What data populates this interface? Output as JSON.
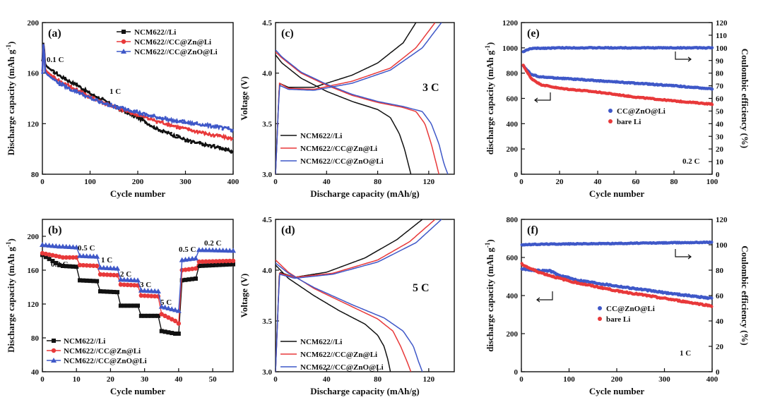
{
  "colors": {
    "black": "#111111",
    "red": "#e8393a",
    "blue": "#3f58c8"
  },
  "chart_data": [
    {
      "id": "a",
      "type": "line",
      "panel_label": "(a)",
      "xlabel": "Cycle number",
      "ylabel": "Discharge capacity (mAh g-1)",
      "xlim": [
        0,
        400
      ],
      "ylim": [
        80,
        200
      ],
      "xticks": [
        0,
        100,
        200,
        300,
        400
      ],
      "yticks": [
        80,
        120,
        160,
        200
      ],
      "annotations": [
        "0.1 C",
        "1 C"
      ],
      "series": [
        {
          "name": "NCM622//Li",
          "color": "black",
          "marker": "square",
          "x": [
            0,
            2,
            4,
            6,
            10,
            20,
            40,
            60,
            80,
            100,
            130,
            160,
            200,
            240,
            280,
            320,
            360,
            400
          ],
          "y": [
            170,
            184,
            178,
            167,
            165,
            162,
            157,
            153,
            149,
            144,
            138,
            132,
            125,
            116,
            110,
            105,
            102,
            98
          ]
        },
        {
          "name": "NCM622//CC@Zn@Li",
          "color": "red",
          "marker": "circle",
          "x": [
            0,
            2,
            4,
            6,
            10,
            20,
            40,
            60,
            80,
            100,
            130,
            160,
            200,
            240,
            280,
            320,
            360,
            400
          ],
          "y": [
            162,
            183,
            176,
            163,
            161,
            158,
            153,
            149,
            145,
            141,
            136,
            132,
            127,
            122,
            118,
            114,
            111,
            108
          ]
        },
        {
          "name": "NCM622//CC@ZnO@Li",
          "color": "blue",
          "marker": "triangle",
          "x": [
            0,
            2,
            4,
            6,
            10,
            20,
            40,
            60,
            80,
            100,
            130,
            160,
            200,
            240,
            280,
            320,
            360,
            400
          ],
          "y": [
            160,
            183,
            175,
            161,
            159,
            156,
            151,
            147,
            144,
            140,
            136,
            133,
            129,
            125,
            122,
            120,
            118,
            115
          ]
        }
      ]
    },
    {
      "id": "b",
      "type": "line",
      "panel_label": "(b)",
      "xlabel": "Cycle number",
      "ylabel": "Discharge capacity (mAh g-1)",
      "xlim": [
        0,
        56
      ],
      "ylim": [
        40,
        220
      ],
      "xticks": [
        0,
        10,
        20,
        30,
        40,
        50
      ],
      "yticks": [
        40,
        80,
        120,
        160,
        200
      ],
      "annotations": [
        "0.2 C",
        "0.5 C",
        "1 C",
        "2 C",
        "3 C",
        "5 C",
        "0.5 C",
        "0.2 C"
      ],
      "series": [
        {
          "name": "NCM622//Li",
          "color": "black",
          "marker": "square",
          "x": [
            0,
            5,
            6,
            10,
            11,
            16,
            17,
            22,
            23,
            28,
            29,
            34,
            35,
            39,
            40,
            41,
            45,
            46,
            56
          ],
          "y": [
            178,
            166,
            165,
            164,
            148,
            147,
            135,
            134,
            118,
            118,
            106,
            106,
            88,
            85,
            85,
            148,
            150,
            165,
            167
          ]
        },
        {
          "name": "NCM622//CC@Zn@Li",
          "color": "red",
          "marker": "circle",
          "x": [
            0,
            5,
            6,
            10,
            11,
            16,
            17,
            22,
            23,
            28,
            29,
            34,
            35,
            39,
            40,
            41,
            45,
            46,
            56
          ],
          "y": [
            180,
            176,
            175,
            175,
            166,
            165,
            155,
            154,
            143,
            142,
            130,
            129,
            108,
            100,
            97,
            160,
            162,
            170,
            171
          ]
        },
        {
          "name": "NCM622//CC@ZnO@Li",
          "color": "blue",
          "marker": "triangle",
          "x": [
            0,
            5,
            6,
            10,
            11,
            16,
            17,
            22,
            23,
            28,
            29,
            34,
            35,
            39,
            40,
            41,
            45,
            46,
            56
          ],
          "y": [
            190,
            188,
            188,
            187,
            177,
            176,
            163,
            162,
            149,
            148,
            136,
            135,
            117,
            113,
            112,
            172,
            174,
            184,
            183
          ]
        }
      ]
    },
    {
      "id": "c",
      "type": "line",
      "panel_label": "(c)",
      "annotations": [
        "3 C"
      ],
      "xlabel": "Discharge capacity (mAh/g)",
      "ylabel": "Voltage (V)",
      "xlim": [
        0,
        140
      ],
      "ylim": [
        3.0,
        4.5
      ],
      "xticks": [
        0,
        40,
        80,
        120
      ],
      "yticks": [
        3.0,
        3.5,
        4.0,
        4.5
      ],
      "series": [
        {
          "name": "NCM622//Li",
          "color": "black",
          "part": "discharge",
          "x": [
            0,
            5,
            20,
            40,
            60,
            80,
            90,
            97,
            101,
            104,
            106
          ],
          "y": [
            4.18,
            4.1,
            3.95,
            3.82,
            3.72,
            3.64,
            3.56,
            3.4,
            3.25,
            3.1,
            3.0
          ]
        },
        {
          "name": "NCM622//Li",
          "color": "black",
          "part": "charge",
          "x": [
            0,
            3,
            10,
            30,
            60,
            80,
            100,
            110
          ],
          "y": [
            3.0,
            3.9,
            3.86,
            3.86,
            3.98,
            4.1,
            4.3,
            4.5
          ]
        },
        {
          "name": "NCM622//CC@Zn@Li",
          "color": "red",
          "part": "discharge",
          "x": [
            0,
            5,
            20,
            40,
            60,
            80,
            100,
            110,
            117,
            122,
            126,
            128
          ],
          "y": [
            4.21,
            4.15,
            4.0,
            3.88,
            3.78,
            3.71,
            3.66,
            3.62,
            3.5,
            3.3,
            3.1,
            3.0
          ]
        },
        {
          "name": "NCM622//CC@Zn@Li",
          "color": "red",
          "part": "charge",
          "x": [
            0,
            3,
            10,
            30,
            60,
            90,
            110,
            125
          ],
          "y": [
            3.0,
            3.9,
            3.85,
            3.84,
            3.92,
            4.05,
            4.25,
            4.5
          ]
        },
        {
          "name": "NCM622//CC@ZnO@Li",
          "color": "blue",
          "part": "discharge",
          "x": [
            0,
            5,
            20,
            40,
            60,
            80,
            100,
            115,
            122,
            128,
            132,
            135
          ],
          "y": [
            4.23,
            4.16,
            4.01,
            3.89,
            3.79,
            3.72,
            3.67,
            3.62,
            3.5,
            3.3,
            3.1,
            3.0
          ]
        },
        {
          "name": "NCM622//CC@ZnO@Li",
          "color": "blue",
          "part": "charge",
          "x": [
            0,
            3,
            10,
            30,
            60,
            90,
            115,
            130
          ],
          "y": [
            3.0,
            3.88,
            3.84,
            3.83,
            3.9,
            4.03,
            4.25,
            4.5
          ]
        }
      ]
    },
    {
      "id": "d",
      "type": "line",
      "panel_label": "(d)",
      "annotations": [
        "5 C"
      ],
      "xlabel": "Discharge capacity (mAh/g)",
      "ylabel": "Voltage (V)",
      "xlim": [
        0,
        140
      ],
      "ylim": [
        3.0,
        4.5
      ],
      "xticks": [
        0,
        40,
        80,
        120
      ],
      "yticks": [
        3.0,
        3.5,
        4.0,
        4.5
      ],
      "series": [
        {
          "name": "NCM622//Li",
          "color": "black",
          "part": "discharge",
          "x": [
            0,
            10,
            30,
            50,
            70,
            80,
            85,
            88,
            90
          ],
          "y": [
            4.05,
            3.92,
            3.75,
            3.6,
            3.47,
            3.36,
            3.25,
            3.12,
            3.0
          ]
        },
        {
          "name": "NCM622//Li",
          "color": "black",
          "part": "charge",
          "x": [
            0,
            3,
            15,
            40,
            70,
            95,
            115
          ],
          "y": [
            3.0,
            3.98,
            3.93,
            3.98,
            4.12,
            4.3,
            4.5
          ]
        },
        {
          "name": "NCM622//CC@Zn@Li",
          "color": "red",
          "part": "discharge",
          "x": [
            0,
            10,
            30,
            60,
            80,
            92,
            98,
            103,
            106
          ],
          "y": [
            4.1,
            3.98,
            3.82,
            3.64,
            3.52,
            3.4,
            3.25,
            3.1,
            3.0
          ]
        },
        {
          "name": "NCM622//CC@Zn@Li",
          "color": "red",
          "part": "charge",
          "x": [
            0,
            3,
            15,
            45,
            80,
            105,
            125
          ],
          "y": [
            3.0,
            3.97,
            3.93,
            3.97,
            4.1,
            4.28,
            4.5
          ]
        },
        {
          "name": "NCM622//CC@ZnO@Li",
          "color": "blue",
          "part": "discharge",
          "x": [
            0,
            10,
            30,
            60,
            85,
            100,
            108,
            112,
            115
          ],
          "y": [
            4.07,
            3.97,
            3.83,
            3.66,
            3.53,
            3.4,
            3.25,
            3.1,
            3.0
          ]
        },
        {
          "name": "NCM622//CC@ZnO@Li",
          "color": "blue",
          "part": "charge",
          "x": [
            0,
            3,
            15,
            45,
            80,
            110,
            130
          ],
          "y": [
            3.0,
            3.96,
            3.92,
            3.96,
            4.08,
            4.27,
            4.5
          ]
        }
      ]
    },
    {
      "id": "e",
      "type": "scatter",
      "panel_label": "(e)",
      "annotations": [
        "0.2 C"
      ],
      "xlabel": "Cycle number",
      "ylabel": "discharge capacity (mAh g-1)",
      "ylabel_right": "Coulombic efficiency (%)",
      "xlim": [
        0,
        100
      ],
      "ylim": [
        0,
        1200
      ],
      "ylim_right": [
        0,
        120
      ],
      "xticks": [
        0,
        20,
        40,
        60,
        80,
        100
      ],
      "yticks": [
        0,
        200,
        400,
        600,
        800,
        1000,
        1200
      ],
      "yticks_right": [
        0,
        10,
        20,
        30,
        40,
        50,
        60,
        70,
        80,
        90,
        100,
        110,
        120
      ],
      "series": [
        {
          "name": "CC@ZnO@Li",
          "color": "blue",
          "axis": "left",
          "x": [
            1,
            5,
            10,
            20,
            40,
            60,
            80,
            100
          ],
          "y": [
            860,
            790,
            770,
            760,
            740,
            720,
            700,
            675
          ]
        },
        {
          "name": "bare Li",
          "color": "red",
          "axis": "left",
          "x": [
            1,
            5,
            10,
            20,
            40,
            60,
            80,
            100
          ],
          "y": [
            860,
            760,
            710,
            680,
            650,
            610,
            580,
            555
          ]
        },
        {
          "name": "CE CC@ZnO@Li",
          "color": "blue",
          "axis": "right",
          "x": [
            1,
            5,
            20,
            100
          ],
          "y": [
            97,
            99.5,
            100,
            100
          ]
        }
      ]
    },
    {
      "id": "f",
      "type": "scatter",
      "panel_label": "(f)",
      "annotations": [
        "1 C"
      ],
      "xlabel": "Cycle number",
      "ylabel": "discharge capacity (mAh g-1)",
      "ylabel_right": "Coulombic efficiency (%)",
      "xlim": [
        0,
        400
      ],
      "ylim": [
        0,
        800
      ],
      "ylim_right": [
        0,
        120
      ],
      "xticks": [
        0,
        100,
        200,
        300,
        400
      ],
      "yticks": [
        0,
        200,
        400,
        600,
        800
      ],
      "yticks_right": [
        0,
        20,
        40,
        60,
        80,
        100,
        120
      ],
      "series": [
        {
          "name": "CC@ZnO@Li",
          "color": "blue",
          "axis": "left",
          "x": [
            1,
            20,
            40,
            60,
            80,
            120,
            200,
            300,
            400
          ],
          "y": [
            540,
            535,
            530,
            530,
            505,
            480,
            450,
            415,
            385
          ]
        },
        {
          "name": "bare Li",
          "color": "red",
          "axis": "left",
          "x": [
            1,
            20,
            40,
            60,
            80,
            120,
            200,
            300,
            400
          ],
          "y": [
            565,
            540,
            520,
            505,
            490,
            465,
            425,
            385,
            345
          ]
        },
        {
          "name": "CE CC@ZnO@Li",
          "color": "blue",
          "axis": "right",
          "x": [
            1,
            50,
            200,
            400
          ],
          "y": [
            100,
            100.5,
            101,
            102
          ]
        }
      ]
    }
  ]
}
